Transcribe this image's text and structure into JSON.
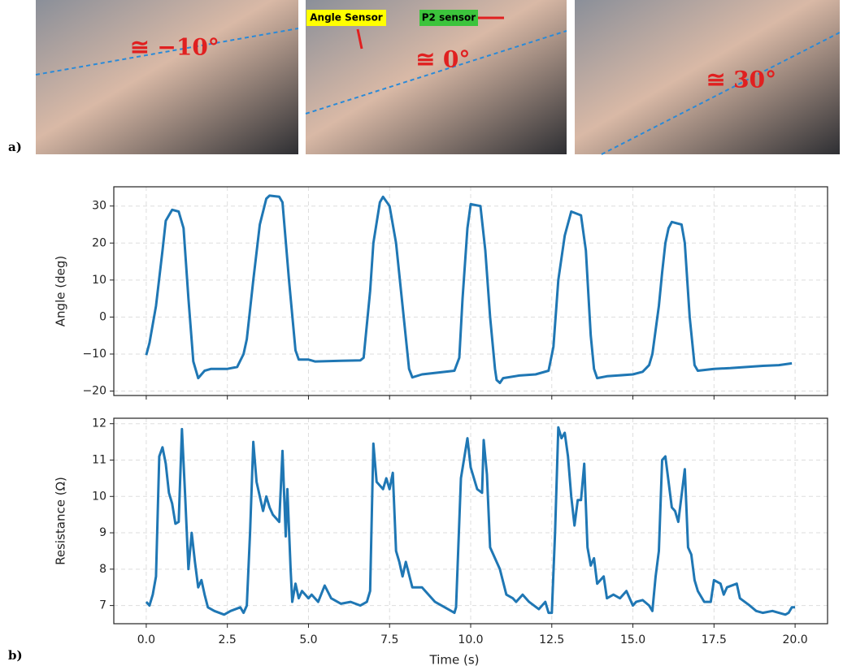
{
  "panel_labels": [
    "a)",
    "b)"
  ],
  "photos": [
    {
      "angle_label": "≅ −10°"
    },
    {
      "angle_label": "≅ 0°",
      "annotations": [
        "Angle Sensor",
        "P2 sensor"
      ]
    },
    {
      "angle_label": "≅ 30°"
    }
  ],
  "chart_data": [
    {
      "type": "line",
      "y_label": "Angle (deg)",
      "x": [
        0,
        0.1,
        0.3,
        0.5,
        0.6,
        0.8,
        1.0,
        1.15,
        1.3,
        1.45,
        1.6,
        1.8,
        2.0,
        2.5,
        2.8,
        3.0,
        3.1,
        3.3,
        3.5,
        3.7,
        3.8,
        4.1,
        4.2,
        4.4,
        4.6,
        4.7,
        5.0,
        5.2,
        6.0,
        6.6,
        6.7,
        6.9,
        7.0,
        7.2,
        7.3,
        7.5,
        7.7,
        7.9,
        8.1,
        8.2,
        8.5,
        9.0,
        9.5,
        9.65,
        9.75,
        9.9,
        10.0,
        10.3,
        10.45,
        10.6,
        10.75,
        10.8,
        10.9,
        11.0,
        11.5,
        12.0,
        12.4,
        12.55,
        12.7,
        12.9,
        13.1,
        13.4,
        13.55,
        13.7,
        13.8,
        13.9,
        14.2,
        15.0,
        15.3,
        15.5,
        15.6,
        15.8,
        15.9,
        16.0,
        16.1,
        16.2,
        16.5,
        16.6,
        16.75,
        16.9,
        17.0,
        17.5,
        18.0,
        18.5,
        19.0,
        19.5,
        19.9
      ],
      "series": [
        {
          "color": "#1f77b4",
          "values": [
            -10.3,
            -7,
            3,
            18,
            26,
            29,
            28.5,
            24,
            5,
            -12,
            -16.5,
            -14.5,
            -14,
            -14,
            -13.5,
            -10,
            -6,
            10,
            25,
            32,
            32.8,
            32.5,
            31,
            10,
            -9,
            -11.5,
            -11.5,
            -12,
            -11.8,
            -11.7,
            -11,
            7,
            20,
            31,
            32.5,
            30,
            20,
            3,
            -14,
            -16.3,
            -15.5,
            -15,
            -14.5,
            -11,
            5,
            24,
            30.5,
            30,
            18,
            0,
            -14,
            -17,
            -17.8,
            -16.5,
            -15.8,
            -15.5,
            -14.5,
            -8,
            10,
            22,
            28.5,
            27.5,
            18,
            -5,
            -14,
            -16.5,
            -16,
            -15.5,
            -14.8,
            -13,
            -10,
            3,
            12,
            20,
            24,
            25.7,
            25,
            20,
            0,
            -13,
            -14.5,
            -14,
            -13.8,
            -13.5,
            -13.2,
            -13,
            -12.5
          ]
        }
      ],
      "xlim": [
        -1,
        21
      ],
      "ylim": [
        -21.2,
        35.2
      ],
      "xticks": [
        0,
        2.5,
        5,
        7.5,
        10,
        12.5,
        15,
        17.5,
        20
      ],
      "yticks": [
        {
          "value": -20,
          "label": "−20"
        },
        {
          "value": -10,
          "label": "−10"
        },
        0,
        10,
        20,
        30
      ],
      "grid": true
    },
    {
      "type": "line",
      "y_label": "Resistance (Ω)",
      "x_label": "Time (s)",
      "x": [
        0,
        0.1,
        0.2,
        0.3,
        0.4,
        0.5,
        0.6,
        0.7,
        0.8,
        0.9,
        1.0,
        1.1,
        1.2,
        1.3,
        1.4,
        1.5,
        1.6,
        1.7,
        1.8,
        1.9,
        2.1,
        2.4,
        2.6,
        2.9,
        3.0,
        3.1,
        3.2,
        3.3,
        3.4,
        3.5,
        3.6,
        3.7,
        3.8,
        3.9,
        4.1,
        4.2,
        4.3,
        4.35,
        4.45,
        4.5,
        4.6,
        4.7,
        4.8,
        5.0,
        5.1,
        5.3,
        5.5,
        5.7,
        6.0,
        6.3,
        6.6,
        6.8,
        6.9,
        7.0,
        7.1,
        7.3,
        7.4,
        7.5,
        7.6,
        7.7,
        7.8,
        7.9,
        8.0,
        8.2,
        8.5,
        8.9,
        9.2,
        9.5,
        9.55,
        9.7,
        9.9,
        10.0,
        10.2,
        10.35,
        10.4,
        10.5,
        10.6,
        10.9,
        11.1,
        11.3,
        11.4,
        11.6,
        11.8,
        12.1,
        12.3,
        12.4,
        12.5,
        12.6,
        12.7,
        12.8,
        12.9,
        13.0,
        13.1,
        13.2,
        13.3,
        13.4,
        13.5,
        13.6,
        13.7,
        13.8,
        13.9,
        14.1,
        14.2,
        14.4,
        14.6,
        14.8,
        15.0,
        15.1,
        15.3,
        15.5,
        15.6,
        15.7,
        15.8,
        15.9,
        16.0,
        16.2,
        16.3,
        16.4,
        16.6,
        16.7,
        16.8,
        16.9,
        17.0,
        17.2,
        17.4,
        17.5,
        17.7,
        17.8,
        17.9,
        18.2,
        18.3,
        18.6,
        18.8,
        19.0,
        19.3,
        19.5,
        19.7,
        19.8,
        19.9,
        20.0
      ],
      "series": [
        {
          "color": "#1f77b4",
          "values": [
            7.1,
            7.0,
            7.3,
            7.8,
            11.1,
            11.35,
            10.9,
            10.1,
            9.8,
            9.25,
            9.3,
            11.85,
            10.0,
            8.0,
            9.0,
            8.2,
            7.5,
            7.7,
            7.3,
            6.95,
            6.85,
            6.75,
            6.85,
            6.95,
            6.8,
            7.0,
            9.0,
            11.5,
            10.4,
            10.0,
            9.6,
            10.0,
            9.7,
            9.5,
            9.3,
            11.25,
            8.9,
            10.2,
            8.0,
            7.1,
            7.6,
            7.2,
            7.4,
            7.2,
            7.3,
            7.1,
            7.55,
            7.2,
            7.05,
            7.1,
            7.0,
            7.1,
            7.4,
            11.45,
            10.4,
            10.2,
            10.5,
            10.2,
            10.65,
            8.5,
            8.2,
            7.8,
            8.2,
            7.5,
            7.5,
            7.1,
            6.95,
            6.8,
            6.95,
            10.5,
            11.6,
            10.8,
            10.2,
            10.1,
            11.55,
            10.6,
            8.6,
            8.0,
            7.3,
            7.2,
            7.1,
            7.3,
            7.1,
            6.9,
            7.1,
            6.8,
            6.8,
            9.0,
            11.9,
            11.6,
            11.75,
            11.1,
            10.0,
            9.2,
            9.9,
            9.9,
            10.9,
            8.6,
            8.1,
            8.3,
            7.6,
            7.8,
            7.2,
            7.3,
            7.2,
            7.4,
            7.0,
            7.1,
            7.15,
            7.0,
            6.85,
            7.8,
            8.5,
            11.0,
            11.1,
            9.7,
            9.6,
            9.3,
            10.75,
            8.6,
            8.4,
            7.7,
            7.4,
            7.1,
            7.1,
            7.7,
            7.6,
            7.3,
            7.5,
            7.6,
            7.2,
            7.0,
            6.85,
            6.8,
            6.85,
            6.8,
            6.75,
            6.8,
            6.95,
            6.95
          ]
        }
      ],
      "xlim": [
        -1,
        21
      ],
      "ylim": [
        6.5,
        12.15
      ],
      "xticks": [
        {
          "value": 0,
          "label": "0.0"
        },
        {
          "value": 2.5,
          "label": "2.5"
        },
        {
          "value": 5,
          "label": "5.0"
        },
        {
          "value": 7.5,
          "label": "7.5"
        },
        {
          "value": 10,
          "label": "10.0"
        },
        {
          "value": 12.5,
          "label": "12.5"
        },
        {
          "value": 15,
          "label": "15.0"
        },
        {
          "value": 17.5,
          "label": "17.5"
        },
        {
          "value": 20,
          "label": "20.0"
        }
      ],
      "yticks": [
        7,
        8,
        9,
        10,
        11,
        12
      ],
      "grid": true
    }
  ]
}
